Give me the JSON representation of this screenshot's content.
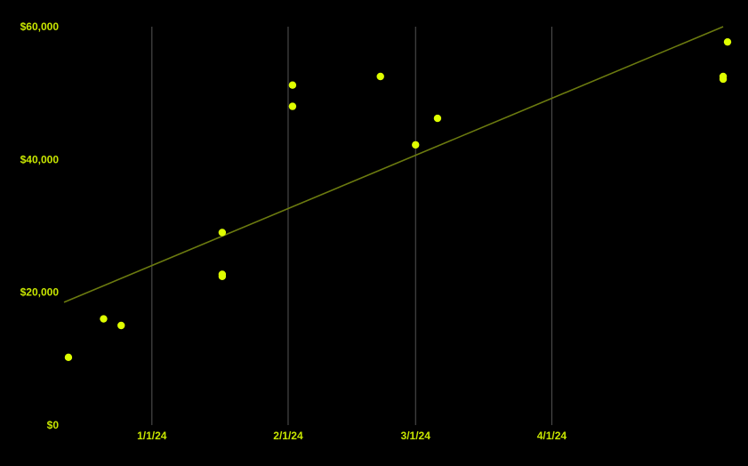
{
  "chart_data": {
    "type": "scatter",
    "title": "",
    "xlabel": "",
    "ylabel": "",
    "x_ticks": [
      {
        "date": "2024-01-01",
        "label": "1/1/24"
      },
      {
        "date": "2024-02-01",
        "label": "2/1/24"
      },
      {
        "date": "2024-03-01",
        "label": "3/1/24"
      },
      {
        "date": "2024-04-01",
        "label": "4/1/24"
      }
    ],
    "xlim": [
      "2023-12-12",
      "2024-05-11"
    ],
    "y_ticks": [
      {
        "value": 0,
        "label": "$0"
      },
      {
        "value": 20000,
        "label": "$20,000"
      },
      {
        "value": 40000,
        "label": "$40,000"
      },
      {
        "value": 60000,
        "label": "$60,000"
      }
    ],
    "ylim": [
      0,
      60000
    ],
    "grid": {
      "vertical": true,
      "horizontal": false
    },
    "series": [
      {
        "points": [
          {
            "x": "2023-12-13",
            "y": 10200
          },
          {
            "x": "2023-12-21",
            "y": 16000
          },
          {
            "x": "2023-12-25",
            "y": 15000
          },
          {
            "x": "2024-01-17",
            "y": 29000
          },
          {
            "x": "2024-01-17",
            "y": 22700
          },
          {
            "x": "2024-01-17",
            "y": 22400
          },
          {
            "x": "2024-02-02",
            "y": 51200
          },
          {
            "x": "2024-02-02",
            "y": 48000
          },
          {
            "x": "2024-02-22",
            "y": 52500
          },
          {
            "x": "2024-03-01",
            "y": 42200
          },
          {
            "x": "2024-03-06",
            "y": 46200
          },
          {
            "x": "2024-05-10",
            "y": 52500
          },
          {
            "x": "2024-05-10",
            "y": 52100
          },
          {
            "x": "2024-05-11",
            "y": 57700
          }
        ]
      }
    ],
    "trendline": {
      "start": {
        "x": "2023-12-12",
        "y": 18500
      },
      "end": {
        "x": "2024-05-10",
        "y": 60000
      }
    },
    "colors": {
      "background": "#000000",
      "points": "#dfff00",
      "trendline": "#6b7a0f",
      "grid": "#555555",
      "tick_labels": "#c8e600"
    }
  }
}
